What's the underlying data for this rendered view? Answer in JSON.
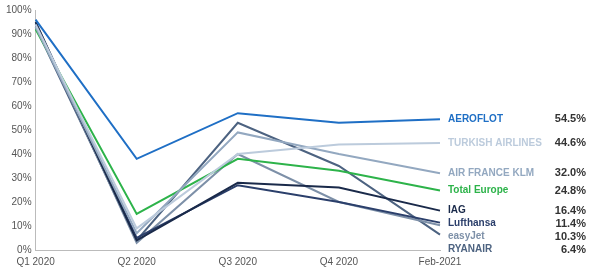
{
  "chart_data": {
    "type": "line",
    "categories": [
      "Q1 2020",
      "Q2 2020",
      "Q3 2020",
      "Q4 2020",
      "Feb-2021"
    ],
    "ylim": [
      0,
      100
    ],
    "yticks": [
      {
        "value": 0,
        "label": "0%"
      },
      {
        "value": 10,
        "label": "10%"
      },
      {
        "value": 20,
        "label": "20%"
      },
      {
        "value": 30,
        "label": "30%"
      },
      {
        "value": 40,
        "label": "40%"
      },
      {
        "value": 50,
        "label": "50%"
      },
      {
        "value": 60,
        "label": "60%"
      },
      {
        "value": 70,
        "label": "70%"
      },
      {
        "value": 80,
        "label": "80%"
      },
      {
        "value": 90,
        "label": "90%"
      },
      {
        "value": 100,
        "label": "100%"
      }
    ],
    "grid": false,
    "data_labels": true,
    "series": [
      {
        "name": "AEROFLOT",
        "color": "#1f6fc5",
        "values": [
          96,
          38,
          57,
          53,
          54.5
        ],
        "value_labels": [
          null,
          null,
          null,
          null,
          "54.5%"
        ]
      },
      {
        "name": "TURKISH AIRLINES",
        "color": "#bccbdc",
        "values": [
          94,
          9,
          40,
          44,
          44.6
        ],
        "value_labels": [
          null,
          null,
          null,
          null,
          "44.6%"
        ]
      },
      {
        "name": "AIR FRANCE KLM",
        "color": "#93a8c0",
        "values": [
          93,
          7,
          49,
          40,
          32.0
        ],
        "value_labels": [
          null,
          null,
          null,
          null,
          "32.0%"
        ]
      },
      {
        "name": "Total Europe",
        "color": "#2db34a",
        "values": [
          92,
          15,
          38,
          33,
          24.8
        ],
        "value_labels": [
          null,
          null,
          null,
          null,
          "24.8%"
        ]
      },
      {
        "name": "IAG",
        "color": "#1a2a4a",
        "values": [
          95,
          4,
          28,
          26,
          16.4
        ],
        "value_labels": [
          null,
          null,
          null,
          null,
          "16.4%"
        ]
      },
      {
        "name": "Lufthansa",
        "color": "#2b3f6b",
        "values": [
          94,
          5,
          27,
          20,
          11.4
        ],
        "value_labels": [
          null,
          null,
          null,
          null,
          "11.4%"
        ]
      },
      {
        "name": "easyJet",
        "color": "#7d90a8",
        "values": [
          95,
          3,
          40,
          20,
          10.3
        ],
        "value_labels": [
          null,
          null,
          null,
          null,
          "10.3%"
        ]
      },
      {
        "name": "RYANAIR",
        "color": "#4d6381",
        "values": [
          93,
          4,
          53,
          35,
          6.4
        ],
        "value_labels": [
          null,
          null,
          null,
          null,
          "6.4%"
        ]
      }
    ]
  }
}
